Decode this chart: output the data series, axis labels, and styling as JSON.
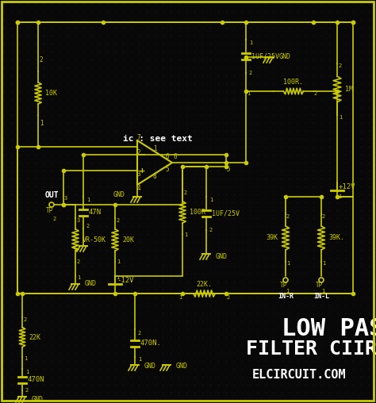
{
  "bg_color": "#080808",
  "line_color": "#cccc00",
  "text_color": "#ffffff",
  "yellow": "#cccc00",
  "title_line1": "LOW PASS",
  "title_line2": "FILTER CIIRCUIT",
  "subtitle": "ELCIRCUIT.COM",
  "ic_label": "ic : see text",
  "figsize": [
    4.74,
    5.08
  ],
  "dpi": 100
}
